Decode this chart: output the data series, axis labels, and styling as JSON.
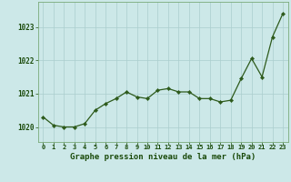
{
  "x": [
    0,
    1,
    2,
    3,
    4,
    5,
    6,
    7,
    8,
    9,
    10,
    11,
    12,
    13,
    14,
    15,
    16,
    17,
    18,
    19,
    20,
    21,
    22,
    23
  ],
  "y": [
    1020.3,
    1020.05,
    1020.0,
    1020.0,
    1020.1,
    1020.5,
    1020.7,
    1020.85,
    1021.05,
    1020.9,
    1020.85,
    1021.1,
    1021.15,
    1021.05,
    1021.05,
    1020.85,
    1020.85,
    1020.75,
    1020.8,
    1021.45,
    1022.05,
    1021.5,
    1022.7,
    1023.4
  ],
  "line_color": "#2d5a1b",
  "marker_color": "#2d5a1b",
  "bg_color": "#cce8e8",
  "grid_color": "#aacece",
  "xlabel": "Graphe pression niveau de la mer (hPa)",
  "xlabel_color": "#1a4a0a",
  "tick_color": "#1a4a0a",
  "axis_color": "#7aaa7a",
  "ylim": [
    1019.55,
    1023.75
  ],
  "yticks": [
    1020,
    1021,
    1022,
    1023
  ],
  "xticks": [
    0,
    1,
    2,
    3,
    4,
    5,
    6,
    7,
    8,
    9,
    10,
    11,
    12,
    13,
    14,
    15,
    16,
    17,
    18,
    19,
    20,
    21,
    22,
    23
  ]
}
